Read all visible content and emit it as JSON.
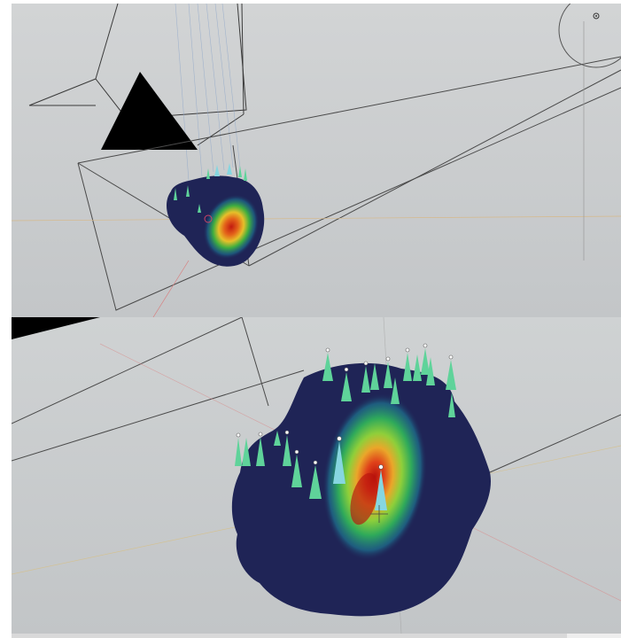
{
  "viewports": [
    {
      "view": "perspective",
      "objects": [
        "camera-frustum",
        "light",
        "terrain-mesh",
        "markers"
      ]
    },
    {
      "view": "perspective-closeup",
      "objects": [
        "terrain-mesh",
        "markers"
      ]
    }
  ],
  "colors": {
    "viewport_bg": "#c8cbcc",
    "mesh": "#1f2456",
    "heat_high": "#d7191c",
    "heat_mid": "#fdae61",
    "heat_low": "#1a9641",
    "marker": "#5fd39a",
    "marker_selected": "#86d6e0",
    "light_black": "#000000"
  },
  "icons": [
    "camera-frustum-icon",
    "light-sun-icon",
    "marker-cone-icon",
    "origin-dot-icon"
  ]
}
